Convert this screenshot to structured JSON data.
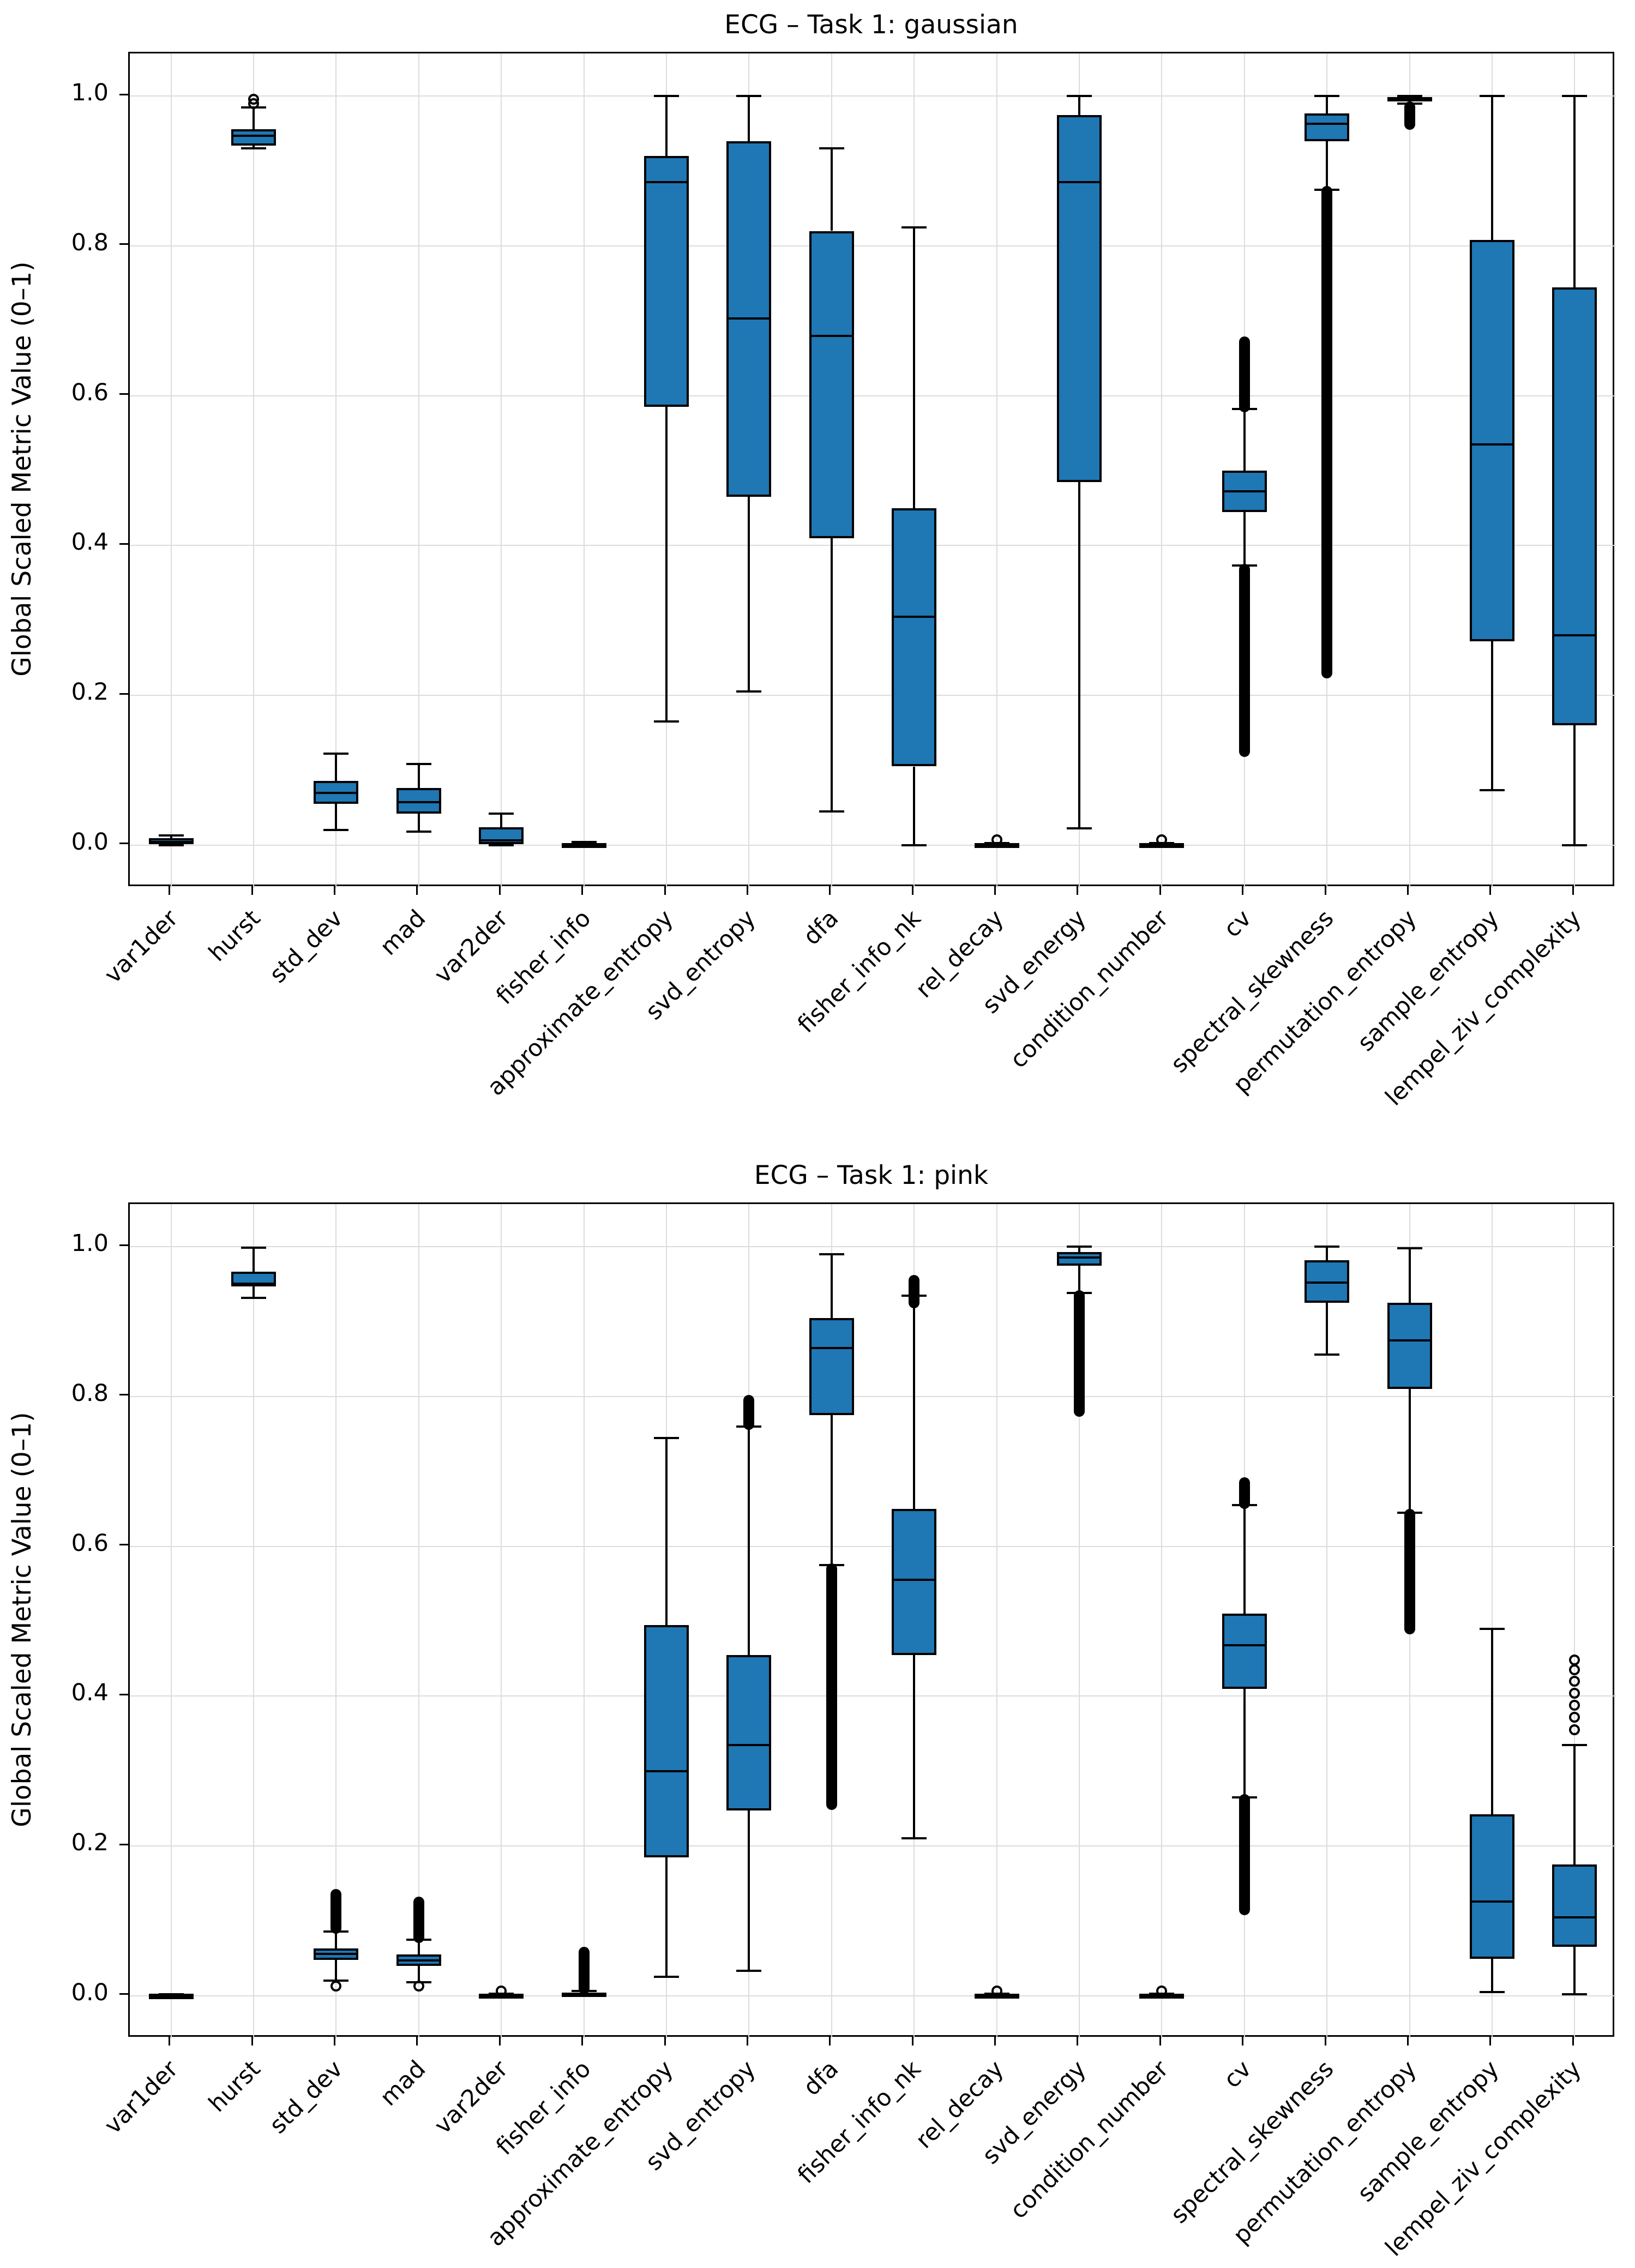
{
  "figure": {
    "background": "#ffffff",
    "box_fill_color": "#1f77b4",
    "line_color": "#000000",
    "grid_color": "#dcdcdc"
  },
  "chart_data": [
    {
      "type": "boxplot",
      "title": "ECG – Task 1: gaussian",
      "ylabel": "Global Scaled Metric Value (0–1)",
      "ylim": [
        -0.057,
        1.057
      ],
      "yticks": [
        "0.0",
        "0.2",
        "0.4",
        "0.6",
        "0.8",
        "1.0"
      ],
      "grid": true,
      "categories": [
        "var1der",
        "hurst",
        "std_dev",
        "mad",
        "var2der",
        "fisher_info",
        "approximate_entropy",
        "svd_entropy",
        "dfa",
        "fisher_info_nk",
        "rel_decay",
        "svd_energy",
        "condition_number",
        "cv",
        "spectral_skewness",
        "permutation_entropy",
        "sample_entropy",
        "lempel_ziv_complexity"
      ],
      "boxes": [
        {
          "label": "var1der",
          "whislo": 0.0,
          "q1": 0.001,
          "med": 0.004,
          "q3": 0.009,
          "whishi": 0.013,
          "fliers_circles": [],
          "fliers_dense": []
        },
        {
          "label": "hurst",
          "whislo": 0.93,
          "q1": 0.934,
          "med": 0.947,
          "q3": 0.956,
          "whishi": 0.985,
          "fliers_circles": [
            0.99,
            0.996
          ],
          "fliers_dense": []
        },
        {
          "label": "std_dev",
          "whislo": 0.02,
          "q1": 0.055,
          "med": 0.07,
          "q3": 0.086,
          "whishi": 0.122,
          "fliers_circles": [],
          "fliers_dense": []
        },
        {
          "label": "mad",
          "whislo": 0.018,
          "q1": 0.042,
          "med": 0.057,
          "q3": 0.076,
          "whishi": 0.108,
          "fliers_circles": [],
          "fliers_dense": []
        },
        {
          "label": "var2der",
          "whislo": 0.0,
          "q1": 0.001,
          "med": 0.006,
          "q3": 0.024,
          "whishi": 0.042,
          "fliers_circles": [],
          "fliers_dense": []
        },
        {
          "label": "fisher_info",
          "whislo": 0.0,
          "q1": 0.0,
          "med": 0.001,
          "q3": 0.002,
          "whishi": 0.004,
          "fliers_circles": [],
          "fliers_dense": []
        },
        {
          "label": "approximate_entropy",
          "whislo": 0.165,
          "q1": 0.585,
          "med": 0.885,
          "q3": 0.92,
          "whishi": 1.0,
          "fliers_circles": [],
          "fliers_dense": []
        },
        {
          "label": "svd_entropy",
          "whislo": 0.205,
          "q1": 0.465,
          "med": 0.703,
          "q3": 0.94,
          "whishi": 1.0,
          "fliers_circles": [],
          "fliers_dense": []
        },
        {
          "label": "dfa",
          "whislo": 0.045,
          "q1": 0.41,
          "med": 0.68,
          "q3": 0.82,
          "whishi": 0.93,
          "fliers_circles": [],
          "fliers_dense": []
        },
        {
          "label": "fisher_info_nk",
          "whislo": 0.0,
          "q1": 0.105,
          "med": 0.305,
          "q3": 0.45,
          "whishi": 0.825,
          "fliers_circles": [],
          "fliers_dense": []
        },
        {
          "label": "rel_decay",
          "whislo": 0.0,
          "q1": 0.0,
          "med": 0.001,
          "q3": 0.002,
          "whishi": 0.003,
          "fliers_circles": [
            0.007
          ],
          "fliers_dense": []
        },
        {
          "label": "svd_energy",
          "whislo": 0.022,
          "q1": 0.485,
          "med": 0.885,
          "q3": 0.975,
          "whishi": 1.0,
          "fliers_circles": [],
          "fliers_dense": []
        },
        {
          "label": "condition_number",
          "whislo": 0.0,
          "q1": 0.0,
          "med": 0.001,
          "q3": 0.002,
          "whishi": 0.003,
          "fliers_circles": [
            0.007
          ],
          "fliers_dense": []
        },
        {
          "label": "cv",
          "whislo": 0.373,
          "q1": 0.445,
          "med": 0.472,
          "q3": 0.5,
          "whishi": 0.582,
          "fliers_circles": [],
          "fliers_dense": [
            [
              0.585,
              0.672
            ],
            [
              0.125,
              0.368
            ]
          ]
        },
        {
          "label": "spectral_skewness",
          "whislo": 0.875,
          "q1": 0.94,
          "med": 0.963,
          "q3": 0.977,
          "whishi": 1.0,
          "fliers_circles": [],
          "fliers_dense": [
            [
              0.23,
              0.873
            ]
          ]
        },
        {
          "label": "permutation_entropy",
          "whislo": 0.99,
          "q1": 0.993,
          "med": 0.997,
          "q3": 0.999,
          "whishi": 1.0,
          "fliers_circles": [],
          "fliers_dense": [
            [
              0.962,
              0.986
            ]
          ]
        },
        {
          "label": "sample_entropy",
          "whislo": 0.073,
          "q1": 0.272,
          "med": 0.535,
          "q3": 0.808,
          "whishi": 1.0,
          "fliers_circles": [],
          "fliers_dense": []
        },
        {
          "label": "lempel_ziv_complexity",
          "whislo": 0.0,
          "q1": 0.16,
          "med": 0.28,
          "q3": 0.745,
          "whishi": 1.0,
          "fliers_circles": [],
          "fliers_dense": []
        }
      ]
    },
    {
      "type": "boxplot",
      "title": "ECG – Task 1: pink",
      "ylabel": "Global Scaled Metric Value (0–1)",
      "ylim": [
        -0.057,
        1.057
      ],
      "yticks": [
        "0.0",
        "0.2",
        "0.4",
        "0.6",
        "0.8",
        "1.0"
      ],
      "grid": true,
      "categories": [
        "var1der",
        "hurst",
        "std_dev",
        "mad",
        "var2der",
        "fisher_info",
        "approximate_entropy",
        "svd_entropy",
        "dfa",
        "fisher_info_nk",
        "rel_decay",
        "svd_energy",
        "condition_number",
        "cv",
        "spectral_skewness",
        "permutation_entropy",
        "sample_entropy",
        "lempel_ziv_complexity"
      ],
      "boxes": [
        {
          "label": "var1der",
          "whislo": 0.0,
          "q1": 0.0,
          "med": 0.001,
          "q3": 0.001,
          "whishi": 0.002,
          "fliers_circles": [],
          "fliers_dense": []
        },
        {
          "label": "hurst",
          "whislo": 0.932,
          "q1": 0.947,
          "med": 0.951,
          "q3": 0.967,
          "whishi": 0.999,
          "fliers_circles": [],
          "fliers_dense": []
        },
        {
          "label": "std_dev",
          "whislo": 0.02,
          "q1": 0.048,
          "med": 0.056,
          "q3": 0.063,
          "whishi": 0.086,
          "fliers_circles": [
            0.013
          ],
          "fliers_dense": [
            [
              0.09,
              0.135
            ]
          ]
        },
        {
          "label": "mad",
          "whislo": 0.018,
          "q1": 0.04,
          "med": 0.047,
          "q3": 0.055,
          "whishi": 0.075,
          "fliers_circles": [
            0.013
          ],
          "fliers_dense": [
            [
              0.078,
              0.125
            ]
          ]
        },
        {
          "label": "var2der",
          "whislo": 0.0,
          "q1": 0.0,
          "med": 0.001,
          "q3": 0.002,
          "whishi": 0.003,
          "fliers_circles": [
            0.006
          ],
          "fliers_dense": []
        },
        {
          "label": "fisher_info",
          "whislo": 0.0,
          "q1": 0.0,
          "med": 0.002,
          "q3": 0.004,
          "whishi": 0.006,
          "fliers_circles": [],
          "fliers_dense": [
            [
              0.009,
              0.058
            ]
          ]
        },
        {
          "label": "approximate_entropy",
          "whislo": 0.025,
          "q1": 0.185,
          "med": 0.3,
          "q3": 0.495,
          "whishi": 0.745,
          "fliers_circles": [],
          "fliers_dense": []
        },
        {
          "label": "svd_entropy",
          "whislo": 0.033,
          "q1": 0.247,
          "med": 0.335,
          "q3": 0.455,
          "whishi": 0.76,
          "fliers_circles": [],
          "fliers_dense": [
            [
              0.763,
              0.795
            ]
          ]
        },
        {
          "label": "dfa",
          "whislo": 0.575,
          "q1": 0.775,
          "med": 0.865,
          "q3": 0.905,
          "whishi": 0.99,
          "fliers_circles": [],
          "fliers_dense": [
            [
              0.255,
              0.57
            ]
          ]
        },
        {
          "label": "fisher_info_nk",
          "whislo": 0.21,
          "q1": 0.455,
          "med": 0.555,
          "q3": 0.65,
          "whishi": 0.935,
          "fliers_circles": [],
          "fliers_dense": [
            [
              0.925,
              0.955
            ]
          ]
        },
        {
          "label": "rel_decay",
          "whislo": 0.0,
          "q1": 0.0,
          "med": 0.001,
          "q3": 0.002,
          "whishi": 0.003,
          "fliers_circles": [
            0.006
          ],
          "fliers_dense": []
        },
        {
          "label": "svd_energy",
          "whislo": 0.938,
          "q1": 0.975,
          "med": 0.986,
          "q3": 0.993,
          "whishi": 1.0,
          "fliers_circles": [],
          "fliers_dense": [
            [
              0.78,
              0.935
            ]
          ]
        },
        {
          "label": "condition_number",
          "whislo": 0.0,
          "q1": 0.0,
          "med": 0.001,
          "q3": 0.002,
          "whishi": 0.003,
          "fliers_circles": [
            0.006
          ],
          "fliers_dense": []
        },
        {
          "label": "cv",
          "whislo": 0.265,
          "q1": 0.41,
          "med": 0.468,
          "q3": 0.51,
          "whishi": 0.655,
          "fliers_circles": [],
          "fliers_dense": [
            [
              0.657,
              0.685
            ],
            [
              0.115,
              0.262
            ]
          ]
        },
        {
          "label": "spectral_skewness",
          "whislo": 0.856,
          "q1": 0.925,
          "med": 0.952,
          "q3": 0.982,
          "whishi": 1.0,
          "fliers_circles": [],
          "fliers_dense": []
        },
        {
          "label": "permutation_entropy",
          "whislo": 0.645,
          "q1": 0.81,
          "med": 0.875,
          "q3": 0.925,
          "whishi": 0.998,
          "fliers_circles": [],
          "fliers_dense": [
            [
              0.49,
              0.643
            ]
          ]
        },
        {
          "label": "sample_entropy",
          "whislo": 0.005,
          "q1": 0.049,
          "med": 0.126,
          "q3": 0.242,
          "whishi": 0.49,
          "fliers_circles": [],
          "fliers_dense": []
        },
        {
          "label": "lempel_ziv_complexity",
          "whislo": 0.002,
          "q1": 0.065,
          "med": 0.105,
          "q3": 0.175,
          "whishi": 0.335,
          "fliers_circles": [
            0.355,
            0.372,
            0.388,
            0.404,
            0.42,
            0.435,
            0.448
          ],
          "fliers_dense": []
        }
      ]
    }
  ]
}
